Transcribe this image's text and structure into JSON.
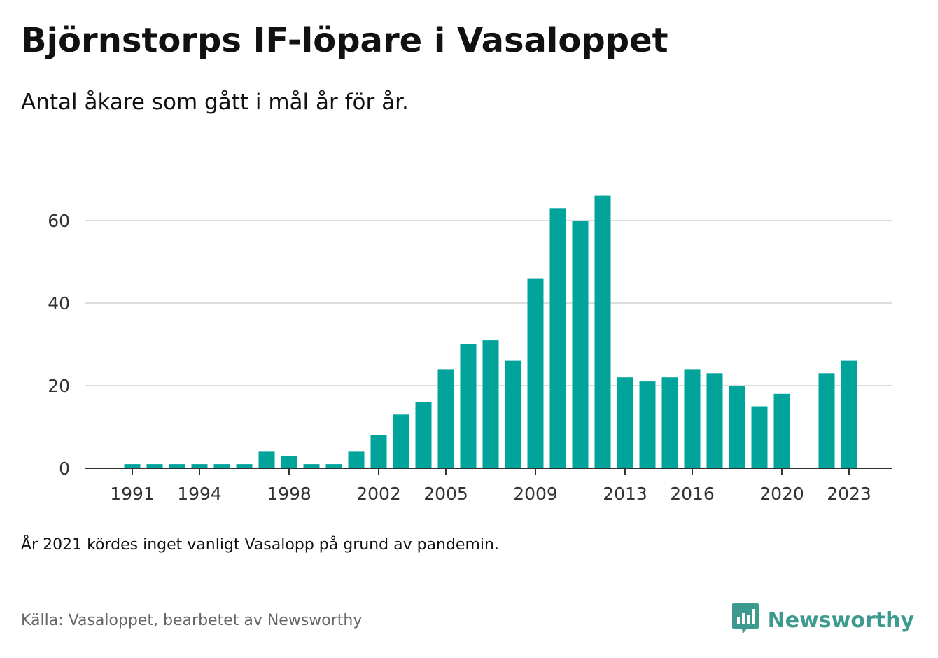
{
  "title": "Björnstorps IF-löpare i Vasaloppet",
  "subtitle": "Antal åkare som gått i mål år för år.",
  "note": "År 2021 kördes inget vanligt Vasalopp på grund av pandemin.",
  "source": "Källa: Vasaloppet, bearbetet av Newsworthy",
  "brand": {
    "name": "Newsworthy",
    "logo_icon": "bar-chart-speech-bubble-icon"
  },
  "colors": {
    "bar": "#00a49a",
    "grid": "#dddddd",
    "axis": "#333333",
    "brand": "#3d9a8f"
  },
  "chart_data": {
    "type": "bar",
    "x": [
      1991,
      1992,
      1993,
      1994,
      1995,
      1996,
      1997,
      1998,
      1999,
      2000,
      2001,
      2002,
      2003,
      2004,
      2005,
      2006,
      2007,
      2008,
      2009,
      2010,
      2011,
      2012,
      2013,
      2014,
      2015,
      2016,
      2017,
      2018,
      2019,
      2020,
      2021,
      2022,
      2023
    ],
    "values": [
      1,
      1,
      1,
      1,
      1,
      1,
      4,
      3,
      1,
      1,
      4,
      8,
      13,
      16,
      24,
      30,
      31,
      26,
      46,
      63,
      60,
      66,
      22,
      21,
      22,
      24,
      23,
      20,
      15,
      18,
      null,
      23,
      26
    ],
    "x_ticks": [
      "1991",
      "1994",
      "1998",
      "2002",
      "2005",
      "2009",
      "2013",
      "2016",
      "2020",
      "2023"
    ],
    "y_ticks": [
      0,
      20,
      40,
      60
    ],
    "ylim": [
      0,
      69
    ],
    "grid": true,
    "legend": "none"
  }
}
